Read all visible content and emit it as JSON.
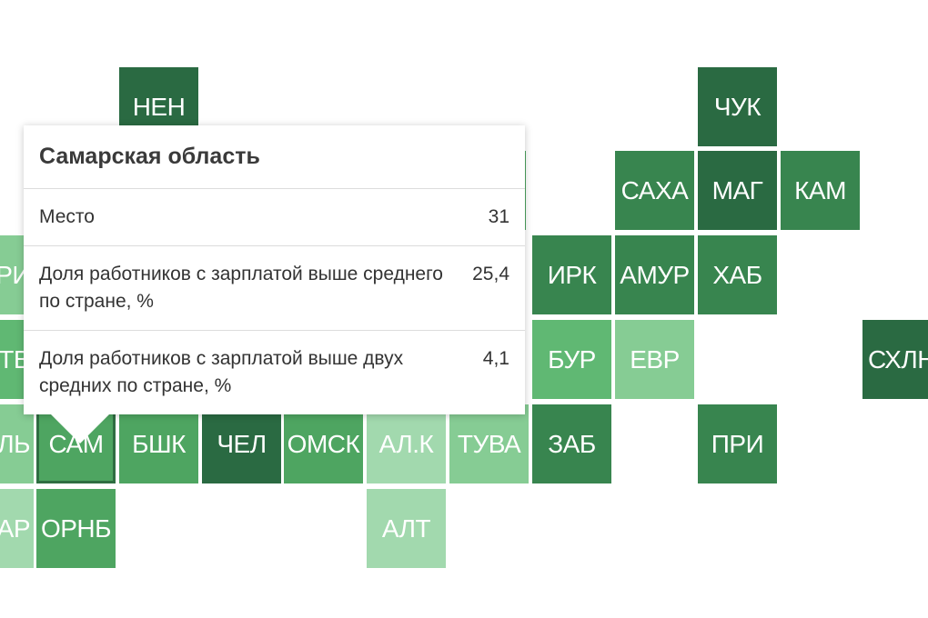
{
  "tiles": {
    "nen": "НЕН",
    "chuk": "ЧУК",
    "saha": "САХА",
    "mag": "МАГ",
    "kam": "КАМ",
    "ri": "РИ",
    "irk": "ИРК",
    "amur": "АМУР",
    "hab": "ХАБ",
    "tv": "ТВ",
    "bur": "БУР",
    "evr": "ЕВР",
    "shln": "СХЛН",
    "l": "ЛЬ",
    "sam": "САМ",
    "bshk": "БШК",
    "chel": "ЧЕЛ",
    "omsk": "ОМСК",
    "alk": "АЛ.К",
    "tuva": "ТУВА",
    "zab": "ЗАБ",
    "pri": "ПРИ",
    "ar": "АР",
    "ornb": "ОРНБ",
    "alt": "АЛТ"
  },
  "tooltip": {
    "title": "Самарская область",
    "rows": [
      {
        "label": "Место",
        "value": "31"
      },
      {
        "label": "Доля работников с зарплатой выше среднего по стране, %",
        "value": "25,4"
      },
      {
        "label": "Доля работников с зарплатой выше двух средних по стране, %",
        "value": "4,1"
      }
    ]
  },
  "colors": {
    "darkest": "#2a6a42",
    "dark": "#38854f",
    "mid": "#4ea561",
    "mid_light": "#60b873",
    "light": "#86cc94",
    "lightest": "#a2d9ae"
  }
}
